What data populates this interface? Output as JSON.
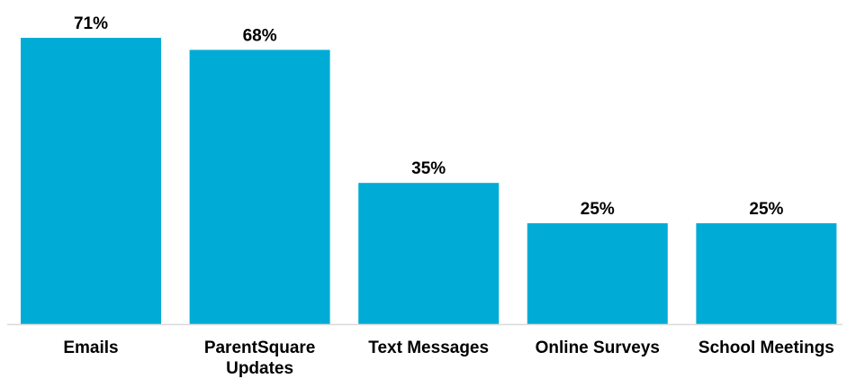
{
  "chart_data": {
    "type": "bar",
    "categories": [
      "Emails",
      "ParentSquare Updates",
      "Text Messages",
      "Online Surveys",
      "School Meetings"
    ],
    "category_lines": [
      [
        "Emails"
      ],
      [
        "ParentSquare",
        "Updates"
      ],
      [
        "Text Messages"
      ],
      [
        "Online Surveys"
      ],
      [
        "School Meetings"
      ]
    ],
    "values": [
      71,
      68,
      35,
      25,
      25
    ],
    "value_labels": [
      "71%",
      "68%",
      "35%",
      "25%",
      "25%"
    ],
    "unit": "%",
    "title": "",
    "xlabel": "",
    "ylabel": "",
    "ylim": [
      0,
      71
    ],
    "grid": false,
    "legend": "none",
    "bar_color": "#00ACD6",
    "axis_color": "#D9D9D9"
  }
}
